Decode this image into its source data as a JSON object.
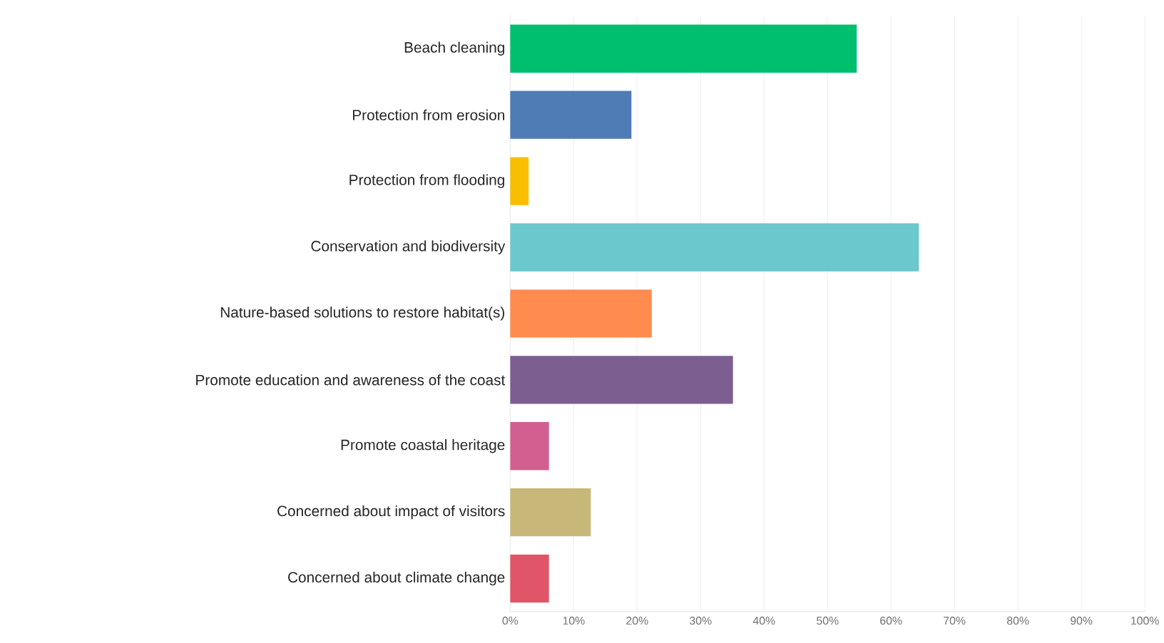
{
  "chart_data": {
    "type": "bar",
    "orientation": "horizontal",
    "categories": [
      "Beach cleaning",
      "Protection from erosion",
      "Protection from flooding",
      "Conservation and biodiversity",
      "Nature-based solutions to restore habitat(s)",
      "Promote education and awareness of the coast",
      "Promote coastal heritage",
      "Concerned about impact of visitors",
      "Concerned about climate change"
    ],
    "values": [
      54.6,
      19.1,
      2.9,
      64.4,
      22.3,
      35.1,
      6.1,
      12.7,
      6.1
    ],
    "colors": [
      "#00bf6f",
      "#507cb6",
      "#f9be00",
      "#6bc8cd",
      "#ff8b4f",
      "#7d5e90",
      "#d25f90",
      "#c7b879",
      "#e05567"
    ],
    "xlim": [
      0,
      100
    ],
    "xticks": [
      {
        "value": 0,
        "label": "0%"
      },
      {
        "value": 10,
        "label": "10%"
      },
      {
        "value": 20,
        "label": "20%"
      },
      {
        "value": 30,
        "label": "30%"
      },
      {
        "value": 40,
        "label": "40%"
      },
      {
        "value": 50,
        "label": "50%"
      },
      {
        "value": 60,
        "label": "60%"
      },
      {
        "value": 70,
        "label": "70%"
      },
      {
        "value": 80,
        "label": "80%"
      },
      {
        "value": 90,
        "label": "90%"
      },
      {
        "value": 100,
        "label": "100%"
      }
    ],
    "grid": "x"
  }
}
